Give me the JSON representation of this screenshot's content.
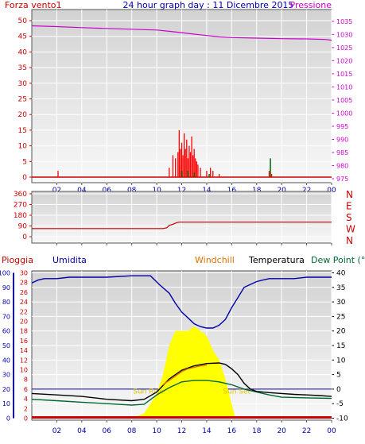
{
  "header": {
    "left_label": "Forza vento1",
    "title": "24 hour graph day : 11 Dicembre 2015",
    "right_label": "Pressione"
  },
  "colors": {
    "wind": "#cc0000",
    "gust": "#ff0000",
    "pressure": "#cc00cc",
    "direction": "#cc0000",
    "rain": "#cc0000",
    "humidity": "#0000aa",
    "windchill": "#e07000",
    "temperature": "#000000",
    "dewpoint": "#006633",
    "sun": "#ffff00",
    "sunlabel": "#e0c000",
    "axis_blue": "#0000aa",
    "direction_labels": "#cc0000"
  },
  "chart_data": [
    {
      "type": "bar",
      "name": "wind_pressure",
      "x_ticks": [
        "02",
        "04",
        "06",
        "08",
        "10",
        "12",
        "14",
        "16",
        "18",
        "20",
        "22",
        "00"
      ],
      "y_left_ticks": [
        0,
        5,
        10,
        15,
        20,
        25,
        30,
        35,
        40,
        45,
        50
      ],
      "y_left_range": [
        0,
        50
      ],
      "y_right_ticks": [
        975,
        980,
        985,
        990,
        995,
        1000,
        1005,
        1010,
        1015,
        1020,
        1025,
        1030,
        1035
      ],
      "y_right_range": [
        973.5,
        1039.5
      ],
      "wind_bars": [
        [
          2.1,
          2
        ],
        [
          11.0,
          3
        ],
        [
          11.3,
          7
        ],
        [
          11.5,
          6
        ],
        [
          11.7,
          8
        ],
        [
          11.8,
          15
        ],
        [
          11.9,
          9
        ],
        [
          12.0,
          11
        ],
        [
          12.1,
          7
        ],
        [
          12.2,
          14
        ],
        [
          12.3,
          9
        ],
        [
          12.4,
          12
        ],
        [
          12.5,
          6
        ],
        [
          12.6,
          10
        ],
        [
          12.7,
          8
        ],
        [
          12.8,
          13
        ],
        [
          12.9,
          7
        ],
        [
          13.0,
          9
        ],
        [
          13.1,
          6
        ],
        [
          13.2,
          5
        ],
        [
          13.3,
          4
        ],
        [
          13.5,
          3
        ],
        [
          14.0,
          2
        ],
        [
          14.3,
          3
        ],
        [
          14.5,
          2
        ],
        [
          15.0,
          1
        ],
        [
          19.0,
          2
        ],
        [
          19.2,
          1
        ]
      ],
      "gust_markers": [
        [
          12.0,
          2
        ],
        [
          12.5,
          2
        ],
        [
          13.0,
          1.5
        ],
        [
          14.2,
          1
        ],
        [
          19.1,
          6
        ]
      ],
      "pressure_x": [
        0,
        2,
        4,
        6,
        8,
        10,
        11,
        12,
        13,
        14,
        15,
        16,
        18,
        20,
        22,
        23.5,
        24
      ],
      "pressure_y": [
        1033.3,
        1033,
        1032.6,
        1032.3,
        1032,
        1031.7,
        1031.2,
        1030.7,
        1030.1,
        1029.6,
        1029.1,
        1028.8,
        1028.6,
        1028.4,
        1028.3,
        1028.1,
        1027.8
      ]
    },
    {
      "type": "line",
      "name": "wind_direction",
      "x_ticks": [
        "02",
        "04",
        "06",
        "08",
        "10",
        "12",
        "14",
        "16",
        "18",
        "20",
        "22",
        "00"
      ],
      "y_left_ticks": [
        0,
        90,
        180,
        270,
        360
      ],
      "y_range": [
        0,
        360
      ],
      "direction_labels": [
        "N",
        "W",
        "S",
        "E",
        "N"
      ],
      "x": [
        0,
        10.5,
        10.8,
        11.0,
        11.3,
        11.6,
        11.8,
        24
      ],
      "y": [
        68,
        68,
        75,
        95,
        105,
        118,
        122,
        122
      ]
    },
    {
      "type": "line",
      "name": "rain_humidity_temperature",
      "legend": [
        "Pioggia",
        "Umidita",
        "Windchill",
        "Temperatura",
        "Dew Point (°C"
      ],
      "x_ticks": [
        "02",
        "04",
        "06",
        "08",
        "10",
        "12",
        "14",
        "16",
        "18",
        "20",
        "22",
        "00"
      ],
      "humidity_ticks": [
        0,
        10,
        20,
        30,
        40,
        50,
        60,
        70,
        80,
        90,
        100
      ],
      "rain_ticks": [
        0,
        2,
        4,
        6,
        8,
        10,
        12,
        14,
        16,
        18,
        20,
        22,
        24,
        26,
        28,
        30
      ],
      "temp_ticks": [
        40,
        35,
        30,
        25,
        20,
        15,
        10,
        5,
        0,
        -5,
        -10
      ],
      "temp_range": [
        -10,
        40
      ],
      "humidity_range": [
        0,
        100
      ],
      "sunrise_label": "Sun Rise",
      "sunset_label": "Sun Set",
      "humidity_x": [
        0,
        0.5,
        1,
        2,
        3,
        4,
        6,
        8,
        9.5,
        10.2,
        11,
        11.5,
        12,
        12.5,
        13,
        13.5,
        14,
        14.5,
        15,
        15.5,
        16,
        16.5,
        17,
        17.5,
        18,
        18.5,
        19,
        20,
        21,
        22,
        23,
        24
      ],
      "humidity_y": [
        93,
        95,
        96,
        96,
        97,
        97,
        97,
        98,
        98,
        92,
        86,
        79,
        73,
        69,
        65,
        63,
        62,
        62,
        64,
        68,
        76,
        83,
        90,
        92,
        94,
        95,
        96,
        96,
        96,
        97,
        97,
        97
      ],
      "temperature_x": [
        0,
        2,
        4,
        6,
        8,
        9,
        10,
        11,
        12,
        13,
        14,
        15,
        15.5,
        16,
        16.5,
        17,
        17.5,
        18,
        19,
        20,
        21,
        22,
        23,
        24
      ],
      "temperature_y": [
        -1.5,
        -2,
        -2.5,
        -3.5,
        -4,
        -3.5,
        -1,
        3.5,
        6.5,
        8,
        8.8,
        9,
        8.5,
        7,
        5,
        2,
        0,
        -0.8,
        -1.2,
        -1.5,
        -1.8,
        -2,
        -2.2,
        -2.5
      ],
      "windchill_x": [
        10.5,
        11,
        11.5,
        12,
        12.5,
        13,
        13.5,
        14
      ],
      "windchill_y": [
        1.5,
        3,
        4.5,
        6,
        7,
        7.5,
        8,
        8.3
      ],
      "dewpoint_x": [
        0,
        2,
        4,
        6,
        8,
        9,
        10,
        11,
        12,
        13,
        14,
        15,
        16,
        17,
        18,
        19,
        20,
        22,
        24
      ],
      "dewpoint_y": [
        -3.5,
        -4,
        -4.5,
        -5,
        -5.5,
        -5.2,
        -2,
        0.5,
        2.5,
        3,
        3,
        2.5,
        1.5,
        0,
        -1,
        -2,
        -2.8,
        -3,
        -3.2
      ],
      "sun_x": [
        8,
        9,
        10,
        10.5,
        11,
        11.5,
        12,
        12.5,
        13,
        13.5,
        14,
        14.5,
        15,
        15.5,
        16,
        16.3
      ],
      "sun_y": [
        0,
        1,
        5,
        9,
        15,
        18,
        18,
        18,
        19,
        18,
        17,
        14,
        12,
        8,
        3,
        0
      ]
    }
  ]
}
